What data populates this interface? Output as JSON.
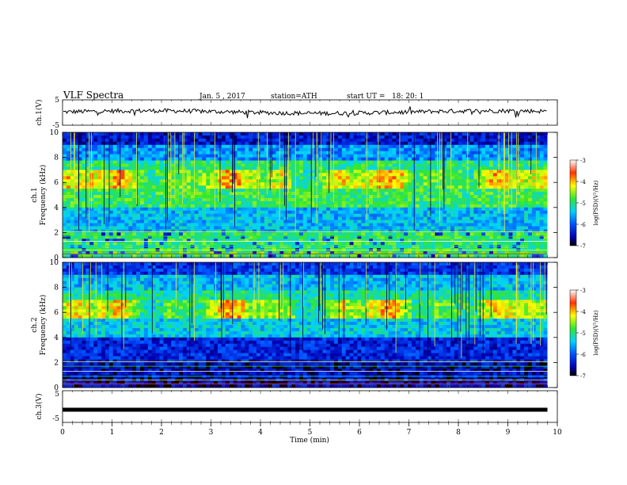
{
  "header": {
    "title": "VLF Spectra",
    "date": "Jan. 5 , 2017",
    "station": "station=ATH",
    "start": "start UT =   18: 20: 1"
  },
  "chart_data": {
    "type": "heatmap",
    "x_axis": {
      "label": "Time (min)",
      "range": [
        0,
        10
      ],
      "ticks": [
        0,
        1,
        2,
        3,
        4,
        5,
        6,
        7,
        8,
        9,
        10
      ],
      "tick_labels": [
        "0",
        "1",
        "2",
        "3",
        "4",
        "5",
        "6",
        "7",
        "8",
        "9",
        "10"
      ],
      "data_end_min": 9.8
    },
    "panels": [
      {
        "name": "ch.1(V)",
        "kind": "waveform",
        "ylabel": "ch.1(V)",
        "ylim": [
          -5,
          5
        ],
        "tick_labels": [
          "5",
          "-5"
        ],
        "mean_v": 0.2,
        "amplitude_v": 1.2
      },
      {
        "name": "ch.1 Frequency (kHz)",
        "kind": "spectrogram",
        "ylabel_line1": "ch.1",
        "ylabel_line2": "Frequency (kHz)",
        "ylim": [
          0,
          10
        ],
        "ticks": [
          0,
          2,
          4,
          6,
          8,
          10
        ],
        "tick_labels": [
          "0",
          "2",
          "4",
          "6",
          "8",
          "10"
        ],
        "colorbar": {
          "label": "log(PSD)(V²/Hz)",
          "range": [
            -7,
            -3
          ],
          "tick_labels": [
            "-3",
            "-4",
            "-5",
            "-6",
            "-7"
          ]
        },
        "bands": [
          {
            "f_low_khz": 0,
            "f_high_khz": 1.0,
            "level": -6.4
          },
          {
            "f_low_khz": 1.0,
            "f_high_khz": 2.2,
            "level": -5.7
          },
          {
            "f_low_khz": 2.2,
            "f_high_khz": 3.0,
            "level": -5.0
          },
          {
            "f_low_khz": 3.0,
            "f_high_khz": 4.6,
            "level": -4.5
          },
          {
            "f_low_khz": 4.6,
            "f_high_khz": 6.0,
            "level": -4.9
          },
          {
            "f_low_khz": 6.0,
            "f_high_khz": 8.0,
            "level": -5.5
          },
          {
            "f_low_khz": 8.0,
            "f_high_khz": 10.0,
            "level": -4.9
          }
        ]
      },
      {
        "name": "ch.2 Frequency (kHz)",
        "kind": "spectrogram",
        "ylabel_line1": "ch.2",
        "ylabel_line2": "Frequency (kHz)",
        "ylim": [
          0,
          10
        ],
        "ticks": [
          0,
          2,
          4,
          6,
          8,
          10
        ],
        "tick_labels": [
          "0",
          "2",
          "4",
          "6",
          "8",
          "10"
        ],
        "colorbar": {
          "label": "log(PSD)(V²/Hz)",
          "range": [
            -7,
            -3
          ],
          "tick_labels": [
            "-3",
            "-4",
            "-5",
            "-6",
            "-7"
          ]
        },
        "bands": [
          {
            "f_low_khz": 0,
            "f_high_khz": 1.0,
            "level": -6.2
          },
          {
            "f_low_khz": 1.0,
            "f_high_khz": 2.2,
            "level": -5.5
          },
          {
            "f_low_khz": 2.2,
            "f_high_khz": 3.0,
            "level": -5.1
          },
          {
            "f_low_khz": 3.0,
            "f_high_khz": 4.6,
            "level": -4.6
          },
          {
            "f_low_khz": 4.6,
            "f_high_khz": 6.0,
            "level": -5.4
          },
          {
            "f_low_khz": 6.0,
            "f_high_khz": 8.0,
            "level": -6.3
          },
          {
            "f_low_khz": 8.0,
            "f_high_khz": 10.0,
            "level": -6.5
          }
        ]
      },
      {
        "name": "ch.3(V)",
        "kind": "waveform",
        "ylabel": "ch.3(V)",
        "ylim": [
          -5,
          5
        ],
        "tick_labels": [
          "5",
          "-5"
        ],
        "mean_v": -1.0,
        "amplitude_v": 0.4
      }
    ]
  }
}
